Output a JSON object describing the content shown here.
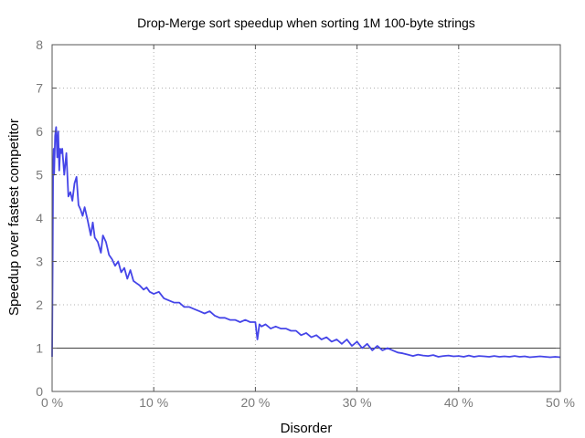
{
  "chart_data": {
    "type": "line",
    "title": "Drop-Merge sort speedup when sorting 1M 100-byte strings",
    "xlabel": "Disorder",
    "ylabel": "Speedup over fastest competitor",
    "xlim": [
      0,
      50
    ],
    "ylim": [
      0,
      8
    ],
    "x_ticks": [
      0,
      10,
      20,
      30,
      40,
      50
    ],
    "x_tick_labels": [
      "0 %",
      "10 %",
      "20 %",
      "30 %",
      "40 %",
      "50 %"
    ],
    "y_ticks": [
      0,
      1,
      2,
      3,
      4,
      5,
      6,
      7,
      8
    ],
    "y_tick_labels": [
      "0",
      "1",
      "2",
      "3",
      "4",
      "5",
      "6",
      "7",
      "8"
    ],
    "grid": true,
    "legend": "none",
    "reference_line": {
      "y": 1,
      "color": "#404040"
    },
    "series": [
      {
        "color": "#4545e8",
        "x": [
          0,
          0.05,
          0.1,
          0.15,
          0.2,
          0.3,
          0.4,
          0.5,
          0.6,
          0.7,
          0.8,
          0.9,
          1.0,
          1.2,
          1.4,
          1.6,
          1.8,
          2.0,
          2.2,
          2.4,
          2.6,
          2.8,
          3.0,
          3.2,
          3.5,
          3.8,
          4.0,
          4.2,
          4.5,
          4.8,
          5.0,
          5.3,
          5.6,
          5.9,
          6.2,
          6.5,
          6.8,
          7.1,
          7.4,
          7.7,
          8.0,
          8.3,
          8.6,
          9.0,
          9.3,
          9.6,
          10.0,
          10.5,
          11.0,
          11.5,
          12.0,
          12.5,
          13.0,
          13.5,
          14.0,
          14.5,
          15.0,
          15.5,
          16.0,
          16.5,
          17.0,
          17.5,
          18.0,
          18.5,
          19.0,
          19.5,
          20.0,
          20.2,
          20.4,
          20.6,
          21.0,
          21.5,
          22.0,
          22.5,
          23.0,
          23.5,
          24.0,
          24.5,
          25.0,
          25.5,
          26.0,
          26.5,
          27.0,
          27.5,
          28.0,
          28.5,
          29.0,
          29.5,
          30.0,
          30.5,
          31.0,
          31.5,
          32.0,
          32.5,
          33.0,
          33.5,
          34.0,
          34.5,
          35.0,
          35.5,
          36.0,
          36.5,
          37.0,
          37.5,
          38.0,
          38.5,
          39.0,
          39.5,
          40.0,
          40.5,
          41.0,
          41.5,
          42.0,
          42.5,
          43.0,
          43.5,
          44.0,
          44.5,
          45.0,
          45.5,
          46.0,
          46.5,
          47.0,
          47.5,
          48.0,
          48.5,
          49.0,
          49.5,
          50.0
        ],
        "y": [
          0.8,
          2.9,
          5.1,
          5.6,
          5.0,
          5.9,
          6.1,
          5.4,
          6.0,
          5.1,
          5.6,
          5.5,
          5.6,
          5.0,
          5.5,
          4.5,
          4.6,
          4.4,
          4.8,
          4.95,
          4.3,
          4.2,
          4.05,
          4.25,
          3.95,
          3.6,
          3.9,
          3.55,
          3.45,
          3.2,
          3.6,
          3.45,
          3.15,
          3.05,
          2.9,
          3.0,
          2.75,
          2.85,
          2.6,
          2.8,
          2.55,
          2.5,
          2.45,
          2.35,
          2.4,
          2.3,
          2.25,
          2.3,
          2.15,
          2.1,
          2.05,
          2.05,
          1.95,
          1.95,
          1.9,
          1.85,
          1.8,
          1.85,
          1.75,
          1.7,
          1.7,
          1.65,
          1.65,
          1.6,
          1.65,
          1.6,
          1.6,
          1.2,
          1.55,
          1.5,
          1.55,
          1.45,
          1.5,
          1.45,
          1.45,
          1.4,
          1.4,
          1.3,
          1.35,
          1.25,
          1.3,
          1.2,
          1.25,
          1.15,
          1.2,
          1.1,
          1.2,
          1.05,
          1.15,
          1.0,
          1.1,
          0.95,
          1.05,
          0.95,
          1.0,
          0.95,
          0.9,
          0.88,
          0.85,
          0.82,
          0.85,
          0.83,
          0.82,
          0.84,
          0.8,
          0.82,
          0.83,
          0.81,
          0.82,
          0.8,
          0.83,
          0.8,
          0.82,
          0.81,
          0.8,
          0.82,
          0.8,
          0.81,
          0.8,
          0.82,
          0.8,
          0.81,
          0.79,
          0.8,
          0.81,
          0.8,
          0.79,
          0.8,
          0.79
        ]
      }
    ]
  }
}
